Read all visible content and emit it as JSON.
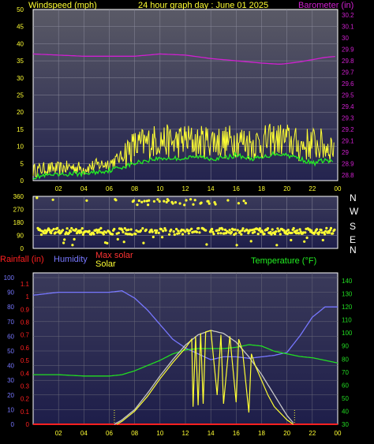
{
  "colors": {
    "windspeed": "#FFFF33",
    "gust_avg": "#22EE22",
    "barometer": "#D020D0",
    "direction": "#FFFF33",
    "rainfall": "#FF2020",
    "humidity": "#7777FF",
    "max_solar": "#FF3333",
    "solar": "#FFFF33",
    "temperature": "#22DD22",
    "max_solar_curve": "#C8C8C8",
    "header_text": "#FFFF33",
    "axis_text": "#FFFF33"
  },
  "panel1": {
    "title": "24 hour graph day : June 01 2025",
    "left_label": "Windspeed (mph)",
    "right_label": "Barometer (in)",
    "left_ticks": [
      "0",
      "5",
      "10",
      "15",
      "20",
      "25",
      "30",
      "35",
      "40",
      "45",
      "50"
    ],
    "right_ticks": [
      "28.8",
      "28.9",
      "29",
      "29.1",
      "29.2",
      "29.3",
      "29.4",
      "29.5",
      "29.6",
      "29.7",
      "29.8",
      "29.9",
      "30",
      "30.1",
      "30.2"
    ]
  },
  "panel2": {
    "left_ticks": [
      "0",
      "90",
      "180",
      "270",
      "360"
    ],
    "compass": [
      "N",
      "W",
      "S",
      "E",
      "N"
    ]
  },
  "panel3": {
    "rainfall_label": "Rainfall (in)",
    "humidity_label": "Humidity",
    "max_solar_label": "Max solar",
    "solar_label": "Solar",
    "temperature_label": "Temperature (°F)",
    "humidity_ticks": [
      "0",
      "10",
      "20",
      "30",
      "40",
      "50",
      "60",
      "70",
      "80",
      "90",
      "100"
    ],
    "rain_ticks": [
      "0",
      "0.1",
      "0.2",
      "0.3",
      "0.4",
      "0.5",
      "0.6",
      "0.7",
      "0.8",
      "0.9",
      "1",
      "1.1"
    ],
    "temp_ticks": [
      "30",
      "40",
      "50",
      "60",
      "70",
      "80",
      "90",
      "100",
      "110",
      "120",
      "130",
      "140"
    ]
  },
  "x_ticks": [
    "02",
    "04",
    "06",
    "08",
    "10",
    "12",
    "14",
    "16",
    "18",
    "20",
    "22",
    "00"
  ],
  "chart_data": {
    "type": "line",
    "title": "24 hour graph day : June 01 2025",
    "x_unit": "hours",
    "x_range": [
      0,
      24
    ],
    "panels": [
      {
        "name": "wind_and_barometer",
        "left_axis": {
          "label": "Windspeed (mph)",
          "range": [
            0,
            50
          ]
        },
        "right_axis": {
          "label": "Barometer (in)",
          "range": [
            28.75,
            30.25
          ]
        },
        "series": [
          {
            "name": "Windspeed (mph)",
            "axis": "left",
            "x": [
              0,
              1,
              2,
              3,
              4,
              5,
              6,
              7,
              7.5,
              8,
              9,
              10,
              11,
              12,
              13,
              14,
              15,
              16,
              17,
              18,
              19,
              20,
              21,
              22,
              23,
              23.5
            ],
            "y": [
              3,
              3.5,
              3.5,
              4,
              3.5,
              4.5,
              5,
              7,
              9,
              10,
              11,
              12,
              11,
              12,
              11,
              12,
              11,
              12,
              11,
              11,
              12,
              12,
              10,
              11,
              10,
              10
            ]
          },
          {
            "axis": "left",
            "x": [
              0,
              1,
              2,
              3,
              4,
              5,
              6,
              7,
              8,
              9,
              10,
              11,
              12,
              13,
              14,
              15,
              16,
              17,
              18,
              19,
              20,
              21,
              22,
              23,
              23.5
            ],
            "y": [
              1,
              1.5,
              1.5,
              2,
              2,
              2.5,
              3,
              4,
              5,
              6,
              6.5,
              6.5,
              6.5,
              7,
              6.5,
              6.5,
              7.5,
              6.5,
              6.5,
              8,
              7.5,
              6.5,
              5,
              6,
              5.5
            ]
          },
          {
            "name": "Barometer (in)",
            "axis": "right",
            "x": [
              0,
              2,
              4,
              6,
              8,
              10,
              12,
              14,
              16,
              18,
              19.5,
              21,
              22,
              23,
              24
            ],
            "y": [
              29.86,
              29.85,
              29.84,
              29.84,
              29.84,
              29.86,
              29.85,
              29.82,
              29.8,
              29.78,
              29.77,
              29.79,
              29.81,
              29.83,
              29.84
            ]
          }
        ]
      },
      {
        "name": "wind_direction",
        "left_axis": {
          "range": [
            0,
            360
          ],
          "ticks": [
            0,
            90,
            180,
            270,
            360
          ]
        },
        "series": [
          {
            "axis": "left",
            "type": "scatter",
            "x": [
              0.5,
              1,
              2,
              2.5,
              3,
              3.5,
              4,
              5,
              5.5,
              6,
              6.5,
              7,
              7.5,
              8,
              8.5,
              9,
              10,
              11,
              12,
              13,
              14,
              15,
              16,
              17,
              18,
              19,
              20,
              21,
              22,
              23,
              23.5
            ],
            "y": [
              110,
              120,
              130,
              100,
              115,
              120,
              125,
              110,
              105,
              120,
              80,
              130,
              100,
              330,
              340,
              300,
              320,
              330,
              335,
              310,
              340,
              320,
              330,
              120,
              125,
              130,
              125,
              120,
              115,
              120,
              118
            ]
          }
        ]
      },
      {
        "name": "rain_humidity_solar_temperature",
        "humidity_axis": {
          "label": "Humidity",
          "range": [
            0,
            100
          ]
        },
        "rain_axis": {
          "label": "Rainfall (in)",
          "range": [
            0,
            1.1
          ]
        },
        "temp_axis": {
          "label": "Temperature (°F)",
          "range": [
            30,
            140
          ]
        },
        "series": [
          {
            "name": "Humidity",
            "axis": "humidity",
            "x": [
              0,
              2,
              4,
              6,
              7,
              8,
              9,
              10,
              11,
              12,
              13,
              14,
              15,
              16,
              17,
              18,
              19,
              20,
              21,
              22,
              23,
              24
            ],
            "y": [
              88,
              90,
              90,
              90,
              91,
              86,
              78,
              68,
              58,
              52,
              48,
              44,
              46,
              46,
              45,
              46,
              47,
              49,
              60,
              73,
              80,
              80
            ]
          },
          {
            "name": "Rainfall (in)",
            "axis": "rain",
            "x": [
              0,
              24
            ],
            "y": [
              0,
              0
            ]
          },
          {
            "name": "Temperature (°F)",
            "axis": "temp",
            "x": [
              0,
              2,
              4,
              6,
              7,
              8,
              9,
              10,
              11,
              12,
              13,
              14,
              15,
              16,
              17,
              18,
              19,
              20,
              21,
              22,
              23,
              24
            ],
            "y": [
              68,
              68,
              67,
              67,
              68,
              71,
              75,
              79,
              84,
              87,
              88,
              88,
              88,
              89,
              91,
              90,
              86,
              84,
              82,
              81,
              79,
              77
            ]
          },
          {
            "name": "Max solar",
            "axis": "humidity",
            "x": [
              6.4,
              7,
              8,
              9,
              10,
              11,
              12,
              13,
              14,
              15,
              16,
              17,
              18,
              19,
              20,
              20.6
            ],
            "y": [
              0,
              3,
              10,
              21,
              33,
              44,
              54,
              61,
              64,
              62,
              56,
              46,
              34,
              20,
              6,
              0
            ]
          },
          {
            "name": "Solar",
            "axis": "humidity",
            "x": [
              6.6,
              7,
              8,
              9,
              10,
              11,
              12,
              12.5,
              12.6,
              12.8,
              13,
              13.2,
              13.4,
              13.6,
              14,
              14.5,
              14.8,
              15,
              15.5,
              16,
              16.2,
              16.5,
              17,
              17.2,
              17.5,
              18,
              18.5,
              19,
              20,
              20.5
            ],
            "y": [
              0,
              2,
              9,
              19,
              31,
              42,
              52,
              58,
              12,
              60,
              13,
              62,
              14,
              63,
              64,
              20,
              61,
              14,
              60,
              15,
              58,
              50,
              8,
              48,
              40,
              30,
              20,
              12,
              3,
              0
            ]
          }
        ]
      }
    ]
  }
}
